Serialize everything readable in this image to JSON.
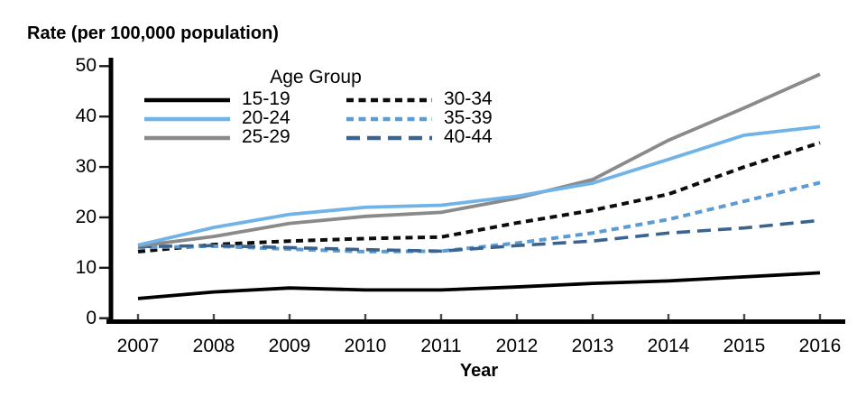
{
  "title": "Rate (per 100,000 population)",
  "x_axis_title": "Year",
  "legend": {
    "title": "Age Group"
  },
  "colors": {
    "black": "#000000",
    "light_blue": "#6FB3E8",
    "gray": "#8A8A8A",
    "dashed_black": "#0D0D0D",
    "dashed_light_blue": "#5D9BD3",
    "dashed_steel_blue": "#3A648F",
    "axis": "#000000",
    "background": "#FFFFFF"
  },
  "chart_data": {
    "type": "line",
    "title": "Rate (per 100,000 population)",
    "xlabel": "Year",
    "ylabel": "Rate (per 100,000 population)",
    "x": [
      2007,
      2008,
      2009,
      2010,
      2011,
      2012,
      2013,
      2014,
      2015,
      2016
    ],
    "xtick_labels": [
      "2007",
      "2008",
      "2009",
      "2010",
      "2011",
      "2012",
      "2013",
      "2014",
      "2015",
      "2016"
    ],
    "yticks": [
      0,
      10,
      20,
      30,
      40,
      50
    ],
    "ylim": [
      0,
      50
    ],
    "grid": false,
    "legend_title": "Age Group",
    "legend_position": "top-center-two-columns",
    "series": [
      {
        "name": "15-19",
        "color": "#000000",
        "line_style": "solid",
        "values": [
          3.9,
          5.2,
          6.0,
          5.6,
          5.6,
          6.2,
          6.9,
          7.4,
          8.2,
          9.0
        ]
      },
      {
        "name": "20-24",
        "color": "#6FB3E8",
        "line_style": "solid",
        "values": [
          14.5,
          18.0,
          20.6,
          22.0,
          22.4,
          24.2,
          26.8,
          31.5,
          36.3,
          38.0
        ]
      },
      {
        "name": "25-29",
        "color": "#8A8A8A",
        "line_style": "solid",
        "values": [
          14.3,
          16.2,
          18.8,
          20.2,
          21.0,
          23.8,
          27.5,
          35.3,
          41.7,
          48.4
        ]
      },
      {
        "name": "30-34",
        "color": "#0D0D0D",
        "line_style": "short-dash",
        "values": [
          13.2,
          14.6,
          15.3,
          15.8,
          16.1,
          18.9,
          21.4,
          24.6,
          30.0,
          34.8
        ]
      },
      {
        "name": "35-39",
        "color": "#5D9BD3",
        "line_style": "short-dash",
        "values": [
          14.0,
          14.3,
          13.7,
          13.2,
          13.3,
          14.9,
          16.9,
          19.6,
          23.2,
          26.9
        ]
      },
      {
        "name": "40-44",
        "color": "#3A648F",
        "line_style": "long-dash",
        "values": [
          14.2,
          14.4,
          14.0,
          13.6,
          13.3,
          14.4,
          15.3,
          16.9,
          17.9,
          19.4
        ]
      }
    ]
  }
}
